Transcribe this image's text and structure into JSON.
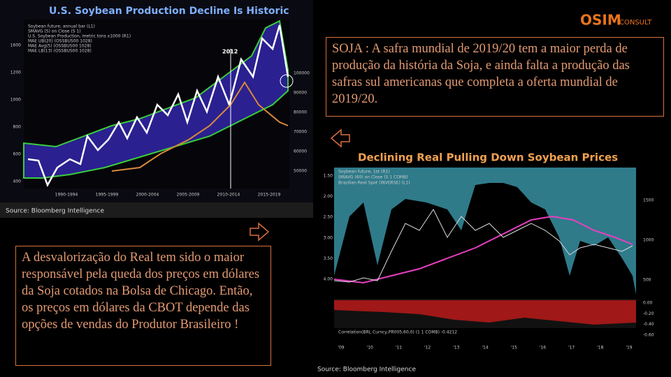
{
  "logo": {
    "brand": "OSIM",
    "suffix": "CONSULT"
  },
  "left_chart": {
    "title": "U.S. Soybean Production Decline Is Historic",
    "legend": [
      "Soybean future, annual bar (L1)",
      "SMAVG (5) on Close (S 1)",
      "U.S. Soybean Production, metric tons x1000 (R1)",
      "MAE UB(20) (OSSBUS00 1028)",
      "MAE Avg(5) (OSSBUS00 1028)",
      "MAE LB(13) (OSSBUS00 1028)"
    ],
    "marker_label": "2012",
    "x_labels": [
      "1990-1994",
      "1995-1999",
      "2000-2004",
      "2005-2009",
      "2010-2014",
      "2015-2019"
    ],
    "y_left": [
      "1600",
      "1200",
      "1000",
      "800",
      "600",
      "400"
    ],
    "y_right": [
      "100000",
      "90000",
      "80000",
      "70000",
      "60000",
      "50000"
    ],
    "source": "Source: Bloomberg Intelligence"
  },
  "right_chart": {
    "title": "Declining Real Pulling Down Soybean Prices",
    "legend": [
      "Soybean future, 1st (R1)",
      "SMAVG (60) on Close (S 1 COMB)",
      "Brazilian Real Spot (INVERSE) (L1)"
    ],
    "y_left": [
      "1.50",
      "2.00",
      "2.50",
      "3.00",
      "3.50",
      "4.00"
    ],
    "y_right": [
      "1500",
      "1000",
      "500"
    ],
    "y_lower": [
      "0.00",
      "-0.20",
      "-0.40",
      "-0.60"
    ],
    "lower_legend": "Correlation(BRL Curncy,PR005,60,0) (1 1 COMB) -0.4212",
    "x_labels": [
      "'09",
      "'10",
      "'11",
      "'12",
      "'13",
      "'14",
      "'15",
      "'16",
      "'17",
      "'18",
      "'19"
    ],
    "source": "Source: Bloomberg Intelligence"
  },
  "text_boxes": [
    "SOJA : A safra mundial de 2019/20 tem a maior perda de produção da história da Soja, e ainda falta a produção das safras sul americanas que completa a oferta mundial de 2019/20.",
    "A desvalorização do Real tem sido o maior  responsável pela queda dos preços em dólares da Soja cotados na Bolsa de Chicago. Então, os preços em dólares da CBOT depende das opções de vendas do Produtor Brasileiro !"
  ]
}
